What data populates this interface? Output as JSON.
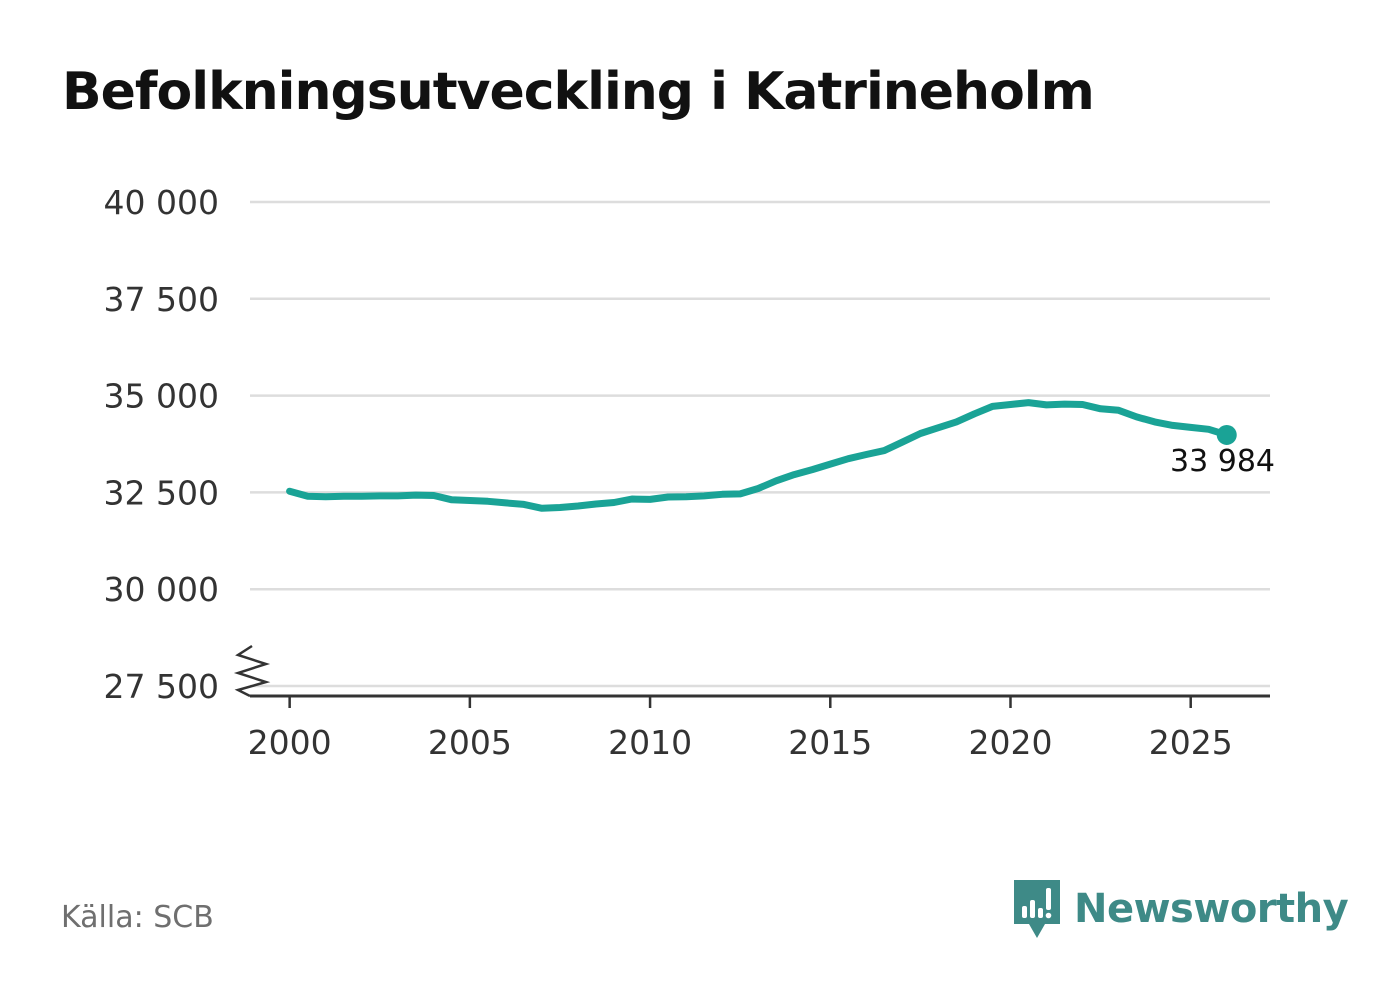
{
  "title": "Befolkningsutveckling i Katrineholm",
  "source": "Källa: SCB",
  "brand": {
    "name": "Newsworthy",
    "color": "#3e8a87"
  },
  "colors": {
    "line": "#1aa396",
    "grid": "#dddddd",
    "axis": "#333333"
  },
  "chart_data": {
    "type": "line",
    "title": "Befolkningsutveckling i Katrineholm",
    "xlabel": "",
    "ylabel": "",
    "xlim": [
      1998.9,
      2027.2
    ],
    "ylim": [
      27500,
      40000
    ],
    "y_axis_break": true,
    "x_ticks": [
      2000,
      2005,
      2010,
      2015,
      2020,
      2025
    ],
    "y_ticks": [
      27500,
      30000,
      32500,
      35000,
      37500,
      40000
    ],
    "y_tick_labels": [
      "27 500",
      "30 000",
      "32 500",
      "35 000",
      "37 500",
      "40 000"
    ],
    "grid": true,
    "series": [
      {
        "name": "Befolkning",
        "x": [
          2000.0,
          2000.5,
          2001.0,
          2001.5,
          2002.0,
          2002.5,
          2003.0,
          2003.5,
          2004.0,
          2004.5,
          2005.0,
          2005.5,
          2006.0,
          2006.5,
          2007.0,
          2007.5,
          2008.0,
          2008.5,
          2009.0,
          2009.5,
          2010.0,
          2010.5,
          2011.0,
          2011.5,
          2012.0,
          2012.5,
          2013.0,
          2013.5,
          2014.0,
          2014.5,
          2015.0,
          2015.5,
          2016.0,
          2016.5,
          2017.0,
          2017.5,
          2018.0,
          2018.5,
          2019.0,
          2019.5,
          2020.0,
          2020.5,
          2021.0,
          2021.5,
          2022.0,
          2022.5,
          2023.0,
          2023.5,
          2024.0,
          2024.5,
          2025.0,
          2025.5,
          2026.0
        ],
        "values": [
          32530,
          32400,
          32390,
          32400,
          32400,
          32410,
          32410,
          32430,
          32420,
          32310,
          32290,
          32270,
          32230,
          32190,
          32090,
          32110,
          32150,
          32200,
          32240,
          32330,
          32320,
          32380,
          32390,
          32410,
          32450,
          32460,
          32600,
          32800,
          32960,
          33090,
          33230,
          33370,
          33480,
          33580,
          33800,
          34020,
          34170,
          34320,
          34530,
          34720,
          34770,
          34820,
          34760,
          34780,
          34770,
          34660,
          34620,
          34450,
          34320,
          34230,
          34180,
          34130,
          33984
        ]
      }
    ],
    "end_label": "33 984",
    "end_value": 33984
  }
}
